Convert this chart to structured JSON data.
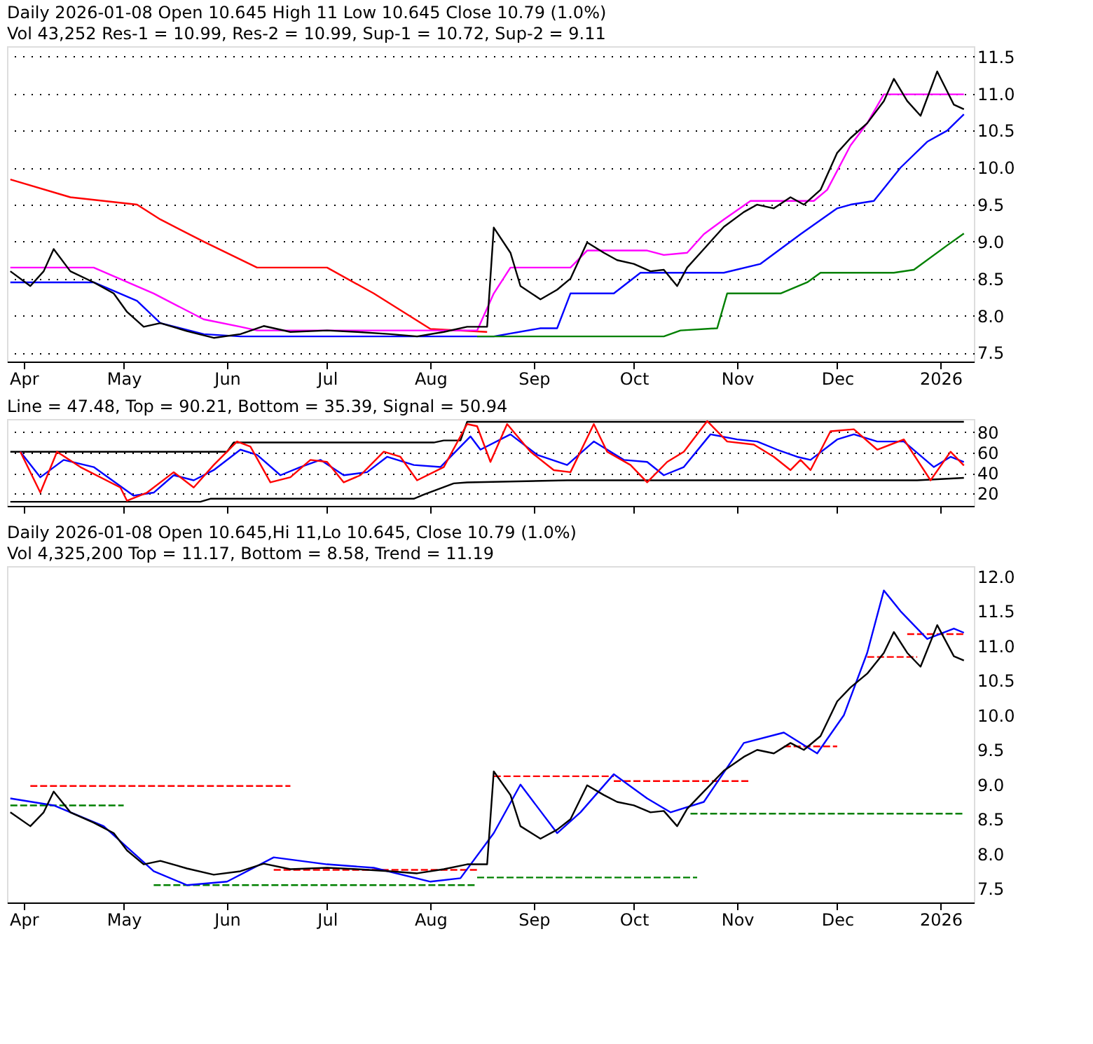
{
  "chart_data": [
    {
      "type": "line",
      "title": "Daily 2026-01-08 Open 10.645  High 11  Low 10.645  Close 10.79 (1.0%)",
      "subtitle": "Vol 43,252 Res-1 = 10.99, Res-2 = 10.99, Sup-1 = 10.72, Sup-2 = 9.11",
      "xlim": [
        "2025-03-27",
        "2026-01-11"
      ],
      "xticks": [
        {
          "value": "2025-04-01",
          "label": "Apr"
        },
        {
          "value": "2025-05-01",
          "label": "May"
        },
        {
          "value": "2025-06-01",
          "label": "Jun"
        },
        {
          "value": "2025-07-01",
          "label": "Jul"
        },
        {
          "value": "2025-08-01",
          "label": "Aug"
        },
        {
          "value": "2025-09-01",
          "label": "Sep"
        },
        {
          "value": "2025-10-01",
          "label": "Oct"
        },
        {
          "value": "2025-11-01",
          "label": "Nov"
        },
        {
          "value": "2025-12-01",
          "label": "Dec"
        },
        {
          "value": "2026-01-01",
          "label": "2026"
        }
      ],
      "ylim": [
        7.38,
        11.64
      ],
      "yticks": [
        7.5,
        {
          "value": 8,
          "label": "8.0"
        },
        8.5,
        {
          "value": 9,
          "label": "9.0"
        },
        9.5,
        {
          "value": 10,
          "label": "10.0"
        },
        10.5,
        {
          "value": 11,
          "label": "11.0"
        },
        11.5
      ],
      "grid": "y",
      "series": [
        {
          "color": "#ff0000",
          "x": [
            "2025-03-28",
            "2025-04-15",
            "2025-05-05",
            "2025-05-12",
            "2025-05-25",
            "2025-06-10",
            "2025-07-01",
            "2025-07-15",
            "2025-08-01",
            "2025-08-18"
          ],
          "values": [
            9.84,
            9.6,
            9.5,
            9.3,
            9.0,
            8.65,
            8.65,
            8.3,
            7.82,
            7.78
          ]
        },
        {
          "color": "#ff00ff",
          "x": [
            "2025-03-28",
            "2025-04-22",
            "2025-05-10",
            "2025-05-25",
            "2025-06-05",
            "2025-06-10",
            "2025-08-15",
            "2025-08-20",
            "2025-08-25",
            "2025-09-12",
            "2025-09-17",
            "2025-10-05",
            "2025-10-10",
            "2025-10-17",
            "2025-10-22",
            "2025-10-28",
            "2025-11-05",
            "2025-11-24",
            "2025-11-28",
            "2025-12-05",
            "2025-12-10",
            "2025-12-15",
            "2026-01-08"
          ],
          "values": [
            8.65,
            8.65,
            8.3,
            7.95,
            7.85,
            7.8,
            7.8,
            8.3,
            8.65,
            8.65,
            8.88,
            8.88,
            8.82,
            8.85,
            9.1,
            9.3,
            9.55,
            9.55,
            9.7,
            10.3,
            10.6,
            10.99,
            10.99
          ]
        },
        {
          "color": "#0000ff",
          "x": [
            "2025-03-28",
            "2025-04-22",
            "2025-05-05",
            "2025-05-12",
            "2025-05-25",
            "2025-06-05",
            "2025-08-20",
            "2025-09-03",
            "2025-09-08",
            "2025-09-12",
            "2025-09-25",
            "2025-10-03",
            "2025-10-28",
            "2025-11-08",
            "2025-11-20",
            "2025-12-01",
            "2025-12-05",
            "2025-12-12",
            "2025-12-20",
            "2025-12-28",
            "2026-01-03",
            "2026-01-08"
          ],
          "values": [
            8.45,
            8.45,
            8.2,
            7.9,
            7.75,
            7.72,
            7.72,
            7.83,
            7.83,
            8.3,
            8.3,
            8.58,
            8.58,
            8.7,
            9.1,
            9.45,
            9.5,
            9.55,
            10.0,
            10.35,
            10.5,
            10.72
          ]
        },
        {
          "color": "#008000",
          "x": [
            "2025-08-15",
            "2025-10-10",
            "2025-10-15",
            "2025-10-26",
            "2025-10-29",
            "2025-11-14",
            "2025-11-22",
            "2025-11-26",
            "2025-12-18",
            "2025-12-24",
            "2026-01-03",
            "2026-01-08"
          ],
          "values": [
            7.72,
            7.72,
            7.8,
            7.83,
            8.3,
            8.3,
            8.45,
            8.58,
            8.58,
            8.62,
            8.95,
            9.11
          ]
        },
        {
          "color": "#000000",
          "x": [
            "2025-03-28",
            "2025-04-03",
            "2025-04-07",
            "2025-04-10",
            "2025-04-15",
            "2025-04-22",
            "2025-04-28",
            "2025-05-02",
            "2025-05-07",
            "2025-05-12",
            "2025-05-20",
            "2025-05-28",
            "2025-06-05",
            "2025-06-12",
            "2025-06-20",
            "2025-07-01",
            "2025-07-10",
            "2025-07-20",
            "2025-07-28",
            "2025-08-05",
            "2025-08-12",
            "2025-08-18",
            "2025-08-20",
            "2025-08-25",
            "2025-08-28",
            "2025-09-03",
            "2025-09-08",
            "2025-09-12",
            "2025-09-17",
            "2025-09-22",
            "2025-09-26",
            "2025-10-01",
            "2025-10-06",
            "2025-10-10",
            "2025-10-14",
            "2025-10-17",
            "2025-10-22",
            "2025-10-28",
            "2025-11-03",
            "2025-11-07",
            "2025-11-12",
            "2025-11-17",
            "2025-11-21",
            "2025-11-26",
            "2025-12-01",
            "2025-12-05",
            "2025-12-10",
            "2025-12-15",
            "2025-12-18",
            "2025-12-22",
            "2025-12-26",
            "2025-12-31",
            "2026-01-05",
            "2026-01-08"
          ],
          "values": [
            8.6,
            8.4,
            8.6,
            8.9,
            8.6,
            8.45,
            8.3,
            8.05,
            7.85,
            7.9,
            7.79,
            7.7,
            7.75,
            7.86,
            7.78,
            7.8,
            7.78,
            7.75,
            7.72,
            7.78,
            7.85,
            7.85,
            9.19,
            8.85,
            8.4,
            8.22,
            8.35,
            8.5,
            8.99,
            8.85,
            8.75,
            8.7,
            8.6,
            8.62,
            8.4,
            8.65,
            8.9,
            9.2,
            9.4,
            9.5,
            9.45,
            9.6,
            9.5,
            9.7,
            10.2,
            10.4,
            10.6,
            10.9,
            11.2,
            10.9,
            10.7,
            11.3,
            10.85,
            10.79
          ]
        }
      ]
    },
    {
      "type": "line",
      "title": "Line = 47.48, Top = 90.21, Bottom = 35.39, Signal = 50.94",
      "xlim": [
        "2025-03-27",
        "2026-01-11"
      ],
      "xticks": [
        {
          "value": "2025-04-01",
          "label": null
        },
        {
          "value": "2025-05-01",
          "label": null
        },
        {
          "value": "2025-06-01",
          "label": null
        },
        {
          "value": "2025-07-01",
          "label": null
        },
        {
          "value": "2025-08-01",
          "label": null
        },
        {
          "value": "2025-09-01",
          "label": null
        },
        {
          "value": "2025-10-01",
          "label": null
        },
        {
          "value": "2025-11-01",
          "label": null
        },
        {
          "value": "2025-12-01",
          "label": null
        },
        {
          "value": "2026-01-01",
          "label": null
        }
      ],
      "ylim": [
        8,
        93
      ],
      "yticks": [
        20,
        40,
        60,
        80
      ],
      "grid": "y",
      "tick_labels": "y",
      "series": [
        {
          "color": "#000000",
          "x": [
            "2025-03-28",
            "2025-06-01",
            "2025-06-03",
            "2025-08-02",
            "2025-08-05",
            "2025-08-10",
            "2025-08-12",
            "2026-01-08"
          ],
          "values": [
            61,
            61,
            70,
            70,
            72,
            72,
            90.21,
            90.21
          ]
        },
        {
          "color": "#000000",
          "x": [
            "2025-03-28",
            "2025-05-24",
            "2025-05-27",
            "2025-07-27",
            "2025-07-30",
            "2025-08-08",
            "2025-08-12",
            "2025-09-11",
            "2025-12-25",
            "2026-01-08"
          ],
          "values": [
            12,
            12,
            15,
            15,
            19,
            30,
            31,
            33,
            33,
            35.39
          ]
        },
        {
          "color": "#0000ff",
          "x": [
            "2025-03-31",
            "2025-04-06",
            "2025-04-13",
            "2025-04-22",
            "2025-05-04",
            "2025-05-10",
            "2025-05-16",
            "2025-05-22",
            "2025-05-28",
            "2025-06-05",
            "2025-06-10",
            "2025-06-17",
            "2025-06-23",
            "2025-06-29",
            "2025-07-06",
            "2025-07-13",
            "2025-07-19",
            "2025-07-27",
            "2025-08-04",
            "2025-08-13",
            "2025-08-16",
            "2025-08-25",
            "2025-09-02",
            "2025-09-11",
            "2025-09-19",
            "2025-09-28",
            "2025-10-05",
            "2025-10-10",
            "2025-10-16",
            "2025-10-24",
            "2025-11-01",
            "2025-11-07",
            "2025-11-13",
            "2025-11-19",
            "2025-11-23",
            "2025-12-01",
            "2025-12-06",
            "2025-12-13",
            "2025-12-21",
            "2025-12-30",
            "2026-01-04",
            "2026-01-08"
          ],
          "values": [
            61,
            36,
            53,
            46,
            18,
            21,
            38,
            33,
            43,
            63,
            58,
            38,
            46,
            53,
            38,
            41,
            56,
            48,
            46,
            76,
            63,
            78,
            58,
            48,
            71,
            53,
            51,
            38,
            46,
            78,
            73,
            71,
            63,
            56,
            53,
            73,
            78,
            71,
            71,
            46,
            56,
            50.94
          ]
        },
        {
          "color": "#ff0000",
          "x": [
            "2025-03-31",
            "2025-04-06",
            "2025-04-11",
            "2025-04-18",
            "2025-04-30",
            "2025-05-02",
            "2025-05-08",
            "2025-05-16",
            "2025-05-22",
            "2025-05-28",
            "2025-06-04",
            "2025-06-08",
            "2025-06-14",
            "2025-06-20",
            "2025-06-26",
            "2025-07-01",
            "2025-07-06",
            "2025-07-11",
            "2025-07-18",
            "2025-07-23",
            "2025-07-28",
            "2025-08-05",
            "2025-08-12",
            "2025-08-15",
            "2025-08-19",
            "2025-08-24",
            "2025-08-31",
            "2025-09-07",
            "2025-09-12",
            "2025-09-19",
            "2025-09-23",
            "2025-09-30",
            "2025-10-05",
            "2025-10-11",
            "2025-10-16",
            "2025-10-23",
            "2025-10-29",
            "2025-11-06",
            "2025-11-12",
            "2025-11-17",
            "2025-11-20",
            "2025-11-23",
            "2025-11-29",
            "2025-12-06",
            "2025-12-13",
            "2025-12-21",
            "2025-12-29",
            "2026-01-04",
            "2026-01-08"
          ],
          "values": [
            61,
            21,
            61,
            46,
            26,
            13,
            21,
            41,
            26,
            48,
            71,
            66,
            31,
            36,
            53,
            51,
            31,
            38,
            61,
            56,
            33,
            46,
            88,
            86,
            51,
            88,
            61,
            43,
            41,
            88,
            61,
            48,
            31,
            51,
            61,
            91,
            71,
            68,
            56,
            43,
            53,
            43,
            81,
            83,
            63,
            73,
            33,
            61,
            47.48
          ]
        }
      ]
    },
    {
      "type": "line",
      "title": "Daily 2026-01-08 Open 10.645,Hi 11,Lo 10.645, Close 10.79 (1.0%)",
      "subtitle": "Vol 4,325,200 Top = 11.17, Bottom = 8.58, Trend = 11.19",
      "xlim": [
        "2025-03-27",
        "2026-01-11"
      ],
      "xticks": [
        {
          "value": "2025-04-01",
          "label": "Apr"
        },
        {
          "value": "2025-05-01",
          "label": "May"
        },
        {
          "value": "2025-06-01",
          "label": "Jun"
        },
        {
          "value": "2025-07-01",
          "label": "Jul"
        },
        {
          "value": "2025-08-01",
          "label": "Aug"
        },
        {
          "value": "2025-09-01",
          "label": "Sep"
        },
        {
          "value": "2025-10-01",
          "label": "Oct"
        },
        {
          "value": "2025-11-01",
          "label": "Nov"
        },
        {
          "value": "2025-12-01",
          "label": "Dec"
        },
        {
          "value": "2026-01-01",
          "label": "2026"
        }
      ],
      "ylim": [
        7.3,
        12.15
      ],
      "yticks": [
        7.5,
        {
          "value": 8,
          "label": "8.0"
        },
        8.5,
        {
          "value": 9,
          "label": "9.0"
        },
        9.5,
        {
          "value": 10,
          "label": "10.0"
        },
        10.5,
        {
          "value": 11,
          "label": "11.0"
        },
        11.5,
        {
          "value": 12,
          "label": "12.0"
        }
      ],
      "series": [
        {
          "color": "#ff0000",
          "line_style": "dashed",
          "x": [
            "2025-04-03",
            "2025-06-20"
          ],
          "values": [
            8.98,
            8.98
          ]
        },
        {
          "color": "#008000",
          "line_style": "dashed",
          "x": [
            "2025-03-28",
            "2025-05-01"
          ],
          "values": [
            8.7,
            8.7
          ]
        },
        {
          "color": "#008000",
          "line_style": "dashed",
          "x": [
            "2025-05-10",
            "2025-08-15"
          ],
          "values": [
            7.55,
            7.55
          ]
        },
        {
          "color": "#ff0000",
          "line_style": "dashed",
          "x": [
            "2025-06-15",
            "2025-08-15"
          ],
          "values": [
            7.77,
            7.77
          ]
        },
        {
          "color": "#008000",
          "line_style": "dashed",
          "x": [
            "2025-08-15",
            "2025-10-20"
          ],
          "values": [
            7.66,
            7.66
          ]
        },
        {
          "color": "#ff0000",
          "line_style": "dashed",
          "x": [
            "2025-08-20",
            "2025-09-25"
          ],
          "values": [
            9.12,
            9.12
          ]
        },
        {
          "color": "#ff0000",
          "line_style": "dashed",
          "x": [
            "2025-09-25",
            "2025-11-05"
          ],
          "values": [
            9.05,
            9.05
          ]
        },
        {
          "color": "#008000",
          "line_style": "dashed",
          "x": [
            "2025-10-18",
            "2026-01-08"
          ],
          "values": [
            8.58,
            8.58
          ]
        },
        {
          "color": "#ff0000",
          "line_style": "dashed",
          "x": [
            "2025-11-15",
            "2025-12-01"
          ],
          "values": [
            9.55,
            9.55
          ]
        },
        {
          "color": "#ff0000",
          "line_style": "dashed",
          "x": [
            "2025-12-10",
            "2025-12-25"
          ],
          "values": [
            10.84,
            10.84
          ]
        },
        {
          "color": "#ff0000",
          "line_style": "dashed",
          "x": [
            "2025-12-22",
            "2026-01-08"
          ],
          "values": [
            11.17,
            11.17
          ]
        },
        {
          "color": "#0000ff",
          "x": [
            "2025-03-28",
            "2025-04-10",
            "2025-04-25",
            "2025-05-10",
            "2025-05-20",
            "2025-06-01",
            "2025-06-15",
            "2025-07-01",
            "2025-07-15",
            "2025-08-01",
            "2025-08-10",
            "2025-08-20",
            "2025-08-28",
            "2025-09-08",
            "2025-09-15",
            "2025-09-25",
            "2025-10-05",
            "2025-10-12",
            "2025-10-22",
            "2025-11-03",
            "2025-11-15",
            "2025-11-25",
            "2025-12-03",
            "2025-12-10",
            "2025-12-15",
            "2025-12-20",
            "2025-12-28",
            "2026-01-05",
            "2026-01-08"
          ],
          "values": [
            8.8,
            8.7,
            8.4,
            7.75,
            7.55,
            7.6,
            7.95,
            7.85,
            7.8,
            7.6,
            7.65,
            8.3,
            9.0,
            8.3,
            8.6,
            9.15,
            8.8,
            8.6,
            8.75,
            9.6,
            9.75,
            9.45,
            10.0,
            10.9,
            11.8,
            11.5,
            11.1,
            11.25,
            11.19
          ]
        },
        {
          "color": "#000000",
          "x": [
            "2025-03-28",
            "2025-04-03",
            "2025-04-07",
            "2025-04-10",
            "2025-04-15",
            "2025-04-22",
            "2025-04-28",
            "2025-05-02",
            "2025-05-07",
            "2025-05-12",
            "2025-05-20",
            "2025-05-28",
            "2025-06-05",
            "2025-06-12",
            "2025-06-20",
            "2025-07-01",
            "2025-07-10",
            "2025-07-20",
            "2025-07-28",
            "2025-08-05",
            "2025-08-12",
            "2025-08-18",
            "2025-08-20",
            "2025-08-25",
            "2025-08-28",
            "2025-09-03",
            "2025-09-08",
            "2025-09-12",
            "2025-09-17",
            "2025-09-22",
            "2025-09-26",
            "2025-10-01",
            "2025-10-06",
            "2025-10-10",
            "2025-10-14",
            "2025-10-17",
            "2025-10-22",
            "2025-10-28",
            "2025-11-03",
            "2025-11-07",
            "2025-11-12",
            "2025-11-17",
            "2025-11-21",
            "2025-11-26",
            "2025-12-01",
            "2025-12-05",
            "2025-12-10",
            "2025-12-15",
            "2025-12-18",
            "2025-12-22",
            "2025-12-26",
            "2025-12-31",
            "2026-01-05",
            "2026-01-08"
          ],
          "values": [
            8.6,
            8.4,
            8.6,
            8.9,
            8.6,
            8.45,
            8.3,
            8.05,
            7.85,
            7.9,
            7.79,
            7.7,
            7.75,
            7.86,
            7.78,
            7.8,
            7.78,
            7.75,
            7.72,
            7.78,
            7.85,
            7.85,
            9.19,
            8.85,
            8.4,
            8.22,
            8.35,
            8.5,
            8.99,
            8.85,
            8.75,
            8.7,
            8.6,
            8.62,
            8.4,
            8.65,
            8.9,
            9.2,
            9.4,
            9.5,
            9.45,
            9.6,
            9.5,
            9.7,
            10.2,
            10.4,
            10.6,
            10.9,
            11.2,
            10.9,
            10.7,
            11.3,
            10.85,
            10.79
          ]
        }
      ]
    }
  ]
}
